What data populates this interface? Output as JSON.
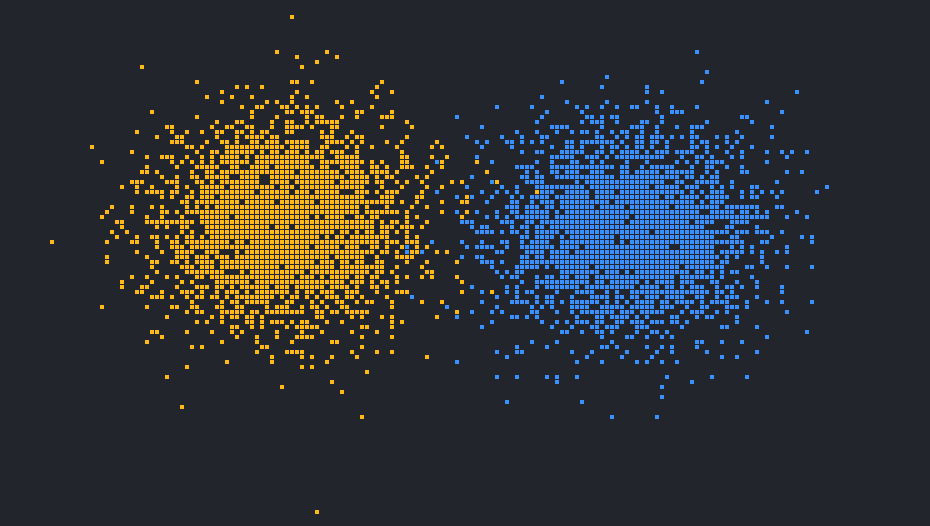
{
  "background_color": "#22252b",
  "chart_data": {
    "type": "scatter",
    "title": "",
    "xlabel": "",
    "ylabel": "",
    "axes_visible": false,
    "grid": false,
    "legend": "none",
    "xlim": [
      -3.0,
      3.0
    ],
    "ylim": [
      -1.7,
      1.7
    ],
    "series": [
      {
        "color": "#ffb915",
        "marker": "square",
        "n_points": 3000,
        "center": [
          -1.15,
          0.25
        ],
        "spread_sd": [
          0.42,
          0.34
        ],
        "x": [
          -1.15,
          -1.52,
          -0.8,
          -1.55,
          -1.1,
          -0.95,
          -1.4,
          -2.3
        ],
        "y": [
          0.25,
          0.7,
          -0.3,
          1.05,
          1.6,
          -1.6,
          -0.2,
          0.05
        ]
      },
      {
        "color": "#3891ff",
        "marker": "square",
        "n_points": 3000,
        "center": [
          1.05,
          0.2
        ],
        "spread_sd": [
          0.42,
          0.34
        ],
        "x": [
          1.05,
          0.85,
          1.5,
          0.05,
          0.75,
          1.95,
          0.6,
          1.25
        ],
        "y": [
          0.2,
          0.9,
          1.35,
          0.55,
          -0.9,
          0.7,
          -0.5,
          -1.0
        ]
      }
    ]
  }
}
